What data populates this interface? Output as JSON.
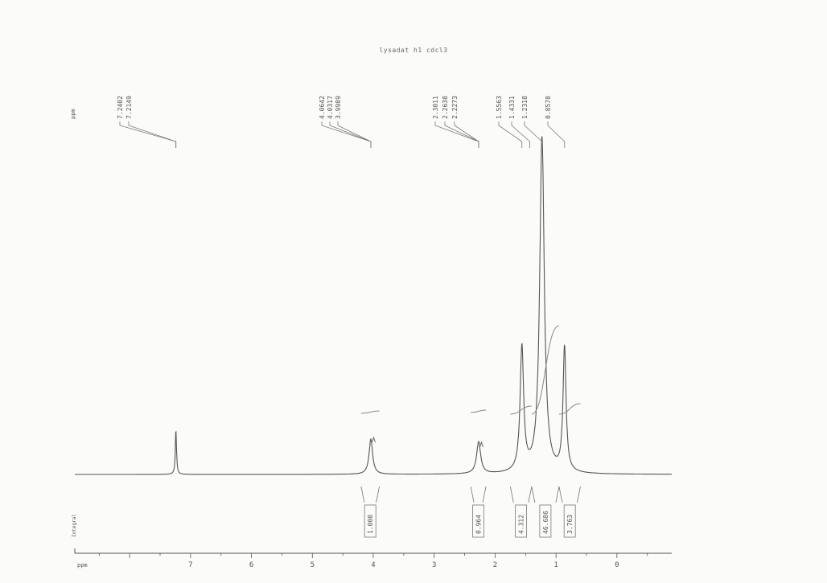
{
  "chart_data": {
    "type": "line",
    "title": "lysadat h1 cdcl3",
    "xunit_top": "ppm",
    "xunit_axis": "ppm",
    "integral_axis_label": "Integral",
    "xlim": [
      8.9,
      -0.9
    ],
    "x_reversed": true,
    "x_ticks": [
      "7",
      "6",
      "5",
      "4",
      "3",
      "2",
      "1",
      "0"
    ],
    "peak_labels": [
      "7.2402",
      "7.2149",
      "4.0642",
      "4.0317",
      "3.9989",
      "2.3011",
      "2.2638",
      "2.2273",
      "1.5563",
      "1.4331",
      "1.2318",
      "0.8578"
    ],
    "peaks": [
      {
        "ppm": 7.24,
        "height": 0.13
      },
      {
        "ppm": 4.04,
        "height": 0.105
      },
      {
        "ppm": 2.27,
        "height": 0.095
      },
      {
        "ppm": 1.56,
        "height": 0.37
      },
      {
        "ppm": 1.23,
        "height": 1.0
      },
      {
        "ppm": 0.86,
        "height": 0.37
      }
    ],
    "integrals": [
      {
        "label": "1.000",
        "from": 4.2,
        "to": 3.9
      },
      {
        "label": "0.964",
        "from": 2.4,
        "to": 2.15
      },
      {
        "label": "4.312",
        "from": 1.75,
        "to": 1.4
      },
      {
        "label": "46.686",
        "from": 1.4,
        "to": 0.95
      },
      {
        "label": "3.763",
        "from": 0.95,
        "to": 0.6
      }
    ]
  }
}
